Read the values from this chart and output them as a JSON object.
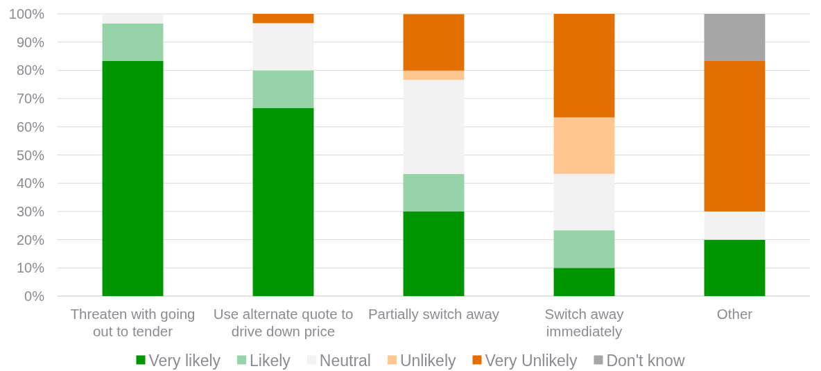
{
  "chart_data": {
    "type": "bar",
    "stacked": true,
    "categories": [
      "Threaten with going out to tender",
      "Use alternate quote to drive down price",
      "Partially switch away",
      "Switch away immediately",
      "Other"
    ],
    "series": [
      {
        "name": "Very likely",
        "color": "#009600",
        "values": [
          83.3,
          66.7,
          30,
          10,
          20
        ]
      },
      {
        "name": "Likely",
        "color": "#97d3a8",
        "values": [
          13.3,
          13.3,
          13.3,
          13.3,
          0
        ]
      },
      {
        "name": "Neutral",
        "color": "#f2f2f2",
        "values": [
          3.3,
          16.7,
          33.3,
          20,
          10
        ]
      },
      {
        "name": "Unlikely",
        "color": "#ffc68f",
        "values": [
          0,
          0,
          3.3,
          20,
          0
        ]
      },
      {
        "name": "Very Unlikely",
        "color": "#e26f00",
        "values": [
          0,
          3.3,
          20,
          36.7,
          53.3
        ]
      },
      {
        "name": "Don't know",
        "color": "#a6a6a6",
        "values": [
          0,
          0,
          0,
          0,
          16.7
        ]
      }
    ],
    "ylim": [
      0,
      100
    ],
    "yticks": [
      {
        "value": 0,
        "label": "0%"
      },
      {
        "value": 10,
        "label": "10%"
      },
      {
        "value": 20,
        "label": "20%"
      },
      {
        "value": 30,
        "label": "30%"
      },
      {
        "value": 40,
        "label": "40%"
      },
      {
        "value": 50,
        "label": "50%"
      },
      {
        "value": 60,
        "label": "60%"
      },
      {
        "value": 70,
        "label": "70%"
      },
      {
        "value": 80,
        "label": "80%"
      },
      {
        "value": 90,
        "label": "90%"
      },
      {
        "value": 100,
        "label": "100%"
      }
    ],
    "grid": "y",
    "legend": "bottom"
  }
}
